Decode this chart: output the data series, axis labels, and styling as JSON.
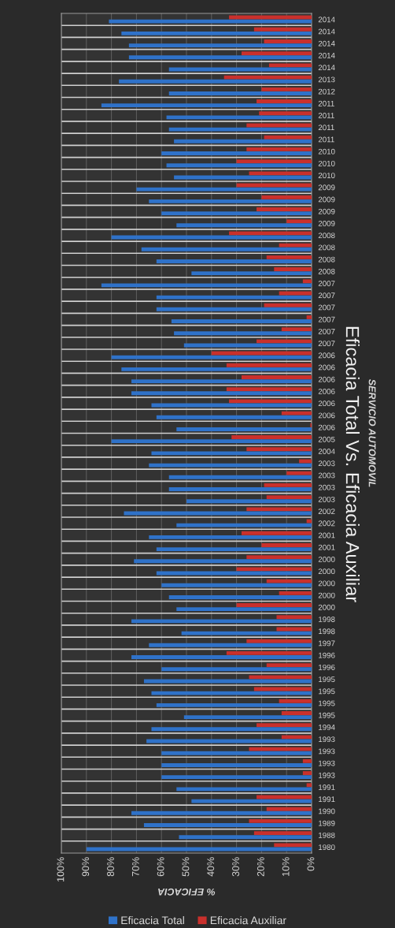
{
  "chart_data": {
    "type": "bar",
    "orientation": "horizontal",
    "title": "Eficacia Total Vs. Eficacia Auxiliar",
    "xlabel": "% EFICACIA",
    "ylabel": "SERVICIO AUTOMOVIL",
    "categories": [
      "2014",
      "2014",
      "2014",
      "2014",
      "2014",
      "2013",
      "2012",
      "2011",
      "2011",
      "2011",
      "2011",
      "2010",
      "2010",
      "2010",
      "2009",
      "2009",
      "2009",
      "2009",
      "2008",
      "2008",
      "2008",
      "2008",
      "2007",
      "2007",
      "2007",
      "2007",
      "2007",
      "2007",
      "2006",
      "2006",
      "2006",
      "2006",
      "2006",
      "2006",
      "2006",
      "2005",
      "2004",
      "2003",
      "2003",
      "2003",
      "2003",
      "2002",
      "2002",
      "2001",
      "2001",
      "2000",
      "2000",
      "2000",
      "2000",
      "2000",
      "1998",
      "1998",
      "1997",
      "1996",
      "1996",
      "1995",
      "1995",
      "1995",
      "1995",
      "1994",
      "1993",
      "1993",
      "1993",
      "1993",
      "1991",
      "1991",
      "1990",
      "1989",
      "1988",
      "1980"
    ],
    "series": [
      {
        "name": "Eficacia Auxiliar",
        "color": "#c9302c",
        "values": [
          33,
          23,
          19,
          28,
          17,
          35,
          20,
          22,
          21,
          26,
          19,
          26,
          30,
          25,
          30,
          20,
          22,
          10,
          33,
          13,
          18,
          15,
          3.5,
          13,
          19,
          2,
          12,
          22,
          40,
          34,
          28,
          34,
          33,
          12,
          0.5,
          32,
          26,
          5,
          10,
          19,
          18,
          26,
          2,
          28,
          20,
          26,
          30,
          18,
          13,
          30,
          14,
          14,
          26,
          34,
          18,
          25,
          23,
          13,
          12,
          22,
          12,
          25,
          3.5,
          3.5,
          2,
          22,
          18,
          25,
          23,
          15
        ]
      },
      {
        "name": "Eficacia Total",
        "color": "#2f72c9",
        "values": [
          81,
          76,
          73,
          73,
          57,
          77,
          57,
          84,
          58,
          57,
          55,
          60,
          58,
          55,
          70,
          65,
          60,
          54,
          80,
          68,
          62,
          48,
          84,
          62,
          62,
          56,
          55,
          51,
          80,
          76,
          72,
          72,
          64,
          62,
          54,
          80,
          64,
          65,
          57,
          57,
          50,
          75,
          54,
          65,
          62,
          71,
          62,
          60,
          57,
          54,
          72,
          52,
          65,
          72,
          60,
          67,
          64,
          62,
          51,
          64,
          66,
          60,
          60,
          60,
          54,
          48,
          72,
          67,
          53,
          90
        ]
      }
    ],
    "xlim": [
      100,
      0
    ],
    "xticks": [
      {
        "value": 100,
        "label": "100%"
      },
      {
        "value": 90,
        "label": "90%"
      },
      {
        "value": 80,
        "label": "80%"
      },
      {
        "value": 70,
        "label": "70%"
      },
      {
        "value": 60,
        "label": "60%"
      },
      {
        "value": 50,
        "label": "50%"
      },
      {
        "value": 40,
        "label": "40%"
      },
      {
        "value": 30,
        "label": "30%"
      },
      {
        "value": 20,
        "label": "20%"
      },
      {
        "value": 10,
        "label": "10%"
      },
      {
        "value": 0,
        "label": "0%"
      }
    ],
    "grid": "x",
    "legend": "bottom"
  }
}
